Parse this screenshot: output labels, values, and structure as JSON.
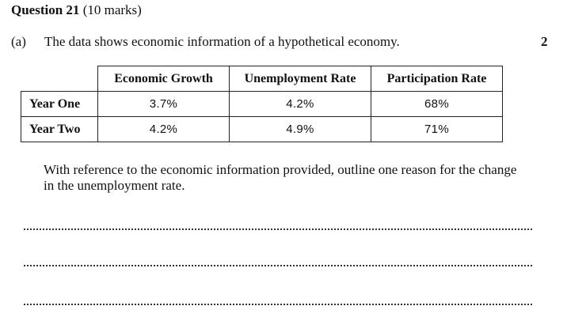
{
  "question": {
    "number_label": "Question 21",
    "marks_label": "(10 marks)"
  },
  "part": {
    "label": "(a)",
    "intro": "The data shows economic information of a hypothetical economy.",
    "marks": "2",
    "prompt": "With reference to the economic information provided, outline one reason for the change in the unemployment rate."
  },
  "table": {
    "columns": [
      "Economic Growth",
      "Unemployment Rate",
      "Participation Rate"
    ],
    "rows": [
      {
        "label": "Year One",
        "values": [
          "3.7%",
          "4.2%",
          "68%"
        ]
      },
      {
        "label": "Year Two",
        "values": [
          "4.2%",
          "4.9%",
          "71%"
        ]
      }
    ]
  }
}
